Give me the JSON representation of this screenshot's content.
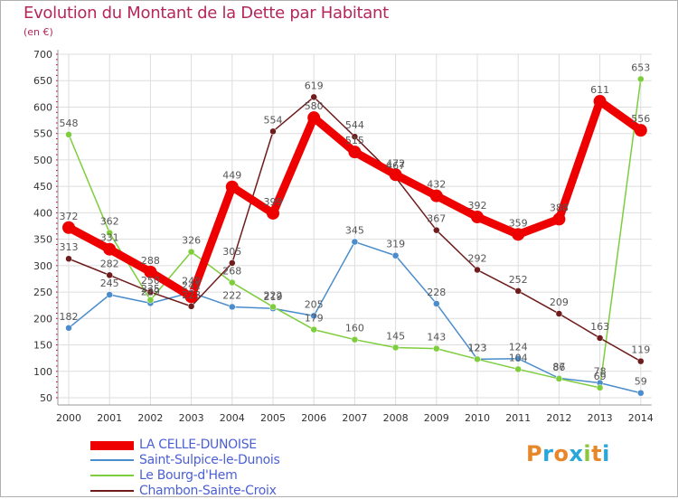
{
  "header": {
    "title": "Evolution du Montant de la Dette par Habitant",
    "unit": "(en €)"
  },
  "logo": {
    "text": "Proxiti",
    "letter_colors": [
      "#e8862a",
      "#2aa7d8",
      "#e8862a",
      "#2aa7d8",
      "#8cc63f",
      "#e8862a",
      "#2aa7d8"
    ]
  },
  "chart_data": {
    "type": "line",
    "x": [
      "2000",
      "2001",
      "2002",
      "2003",
      "2004",
      "2005",
      "2006",
      "2007",
      "2008",
      "2009",
      "2010",
      "2011",
      "2012",
      "2013",
      "2014"
    ],
    "ylim": [
      50,
      700
    ],
    "yticks": [
      50,
      100,
      150,
      200,
      250,
      300,
      350,
      400,
      450,
      500,
      550,
      600,
      650,
      700
    ],
    "grid": true,
    "legend_position": "bottom-left",
    "series": [
      {
        "name": "LA CELLE-DUNOISE",
        "color": "#ee0000",
        "values": [
          372,
          331,
          288,
          241,
          449,
          399,
          580,
          515,
          472,
          432,
          392,
          359,
          388,
          611,
          556
        ],
        "labels": [
          "372",
          "331",
          "288",
          "241",
          "449",
          "399",
          "580",
          "515",
          "472",
          "432",
          "392",
          "359",
          "388",
          "611",
          "556"
        ]
      },
      {
        "name": "Saint-Sulpice-le-Dunois",
        "color": "#4a8ccc",
        "values": [
          182,
          245,
          229,
          249,
          222,
          219,
          205,
          345,
          319,
          228,
          123,
          124,
          87,
          78,
          59
        ],
        "labels": [
          "182",
          "245",
          "229",
          "249",
          "222",
          "219",
          "205",
          "345",
          "319",
          "228",
          "123",
          "124",
          "87",
          "78",
          "59"
        ]
      },
      {
        "name": "Le Bourg-d'Hem",
        "color": "#7dcd3c",
        "values": [
          548,
          362,
          235,
          326,
          268,
          222,
          179,
          160,
          145,
          143,
          123,
          104,
          86,
          69,
          653
        ],
        "labels": [
          "548",
          "362",
          "235",
          "326",
          "268",
          "222",
          "179",
          "160",
          "145",
          "143",
          "123",
          "104",
          "86",
          "69",
          "653"
        ]
      },
      {
        "name": "Chambon-Sainte-Croix",
        "color": "#6e1c1c",
        "values": [
          313,
          282,
          250,
          223,
          305,
          554,
          619,
          544,
          467,
          367,
          292,
          252,
          209,
          163,
          119
        ],
        "labels": [
          "313",
          "282",
          "250",
          "223",
          "305",
          "554",
          "619",
          "544",
          "467",
          "367",
          "292",
          "252",
          "209",
          "163",
          "119"
        ]
      }
    ]
  }
}
